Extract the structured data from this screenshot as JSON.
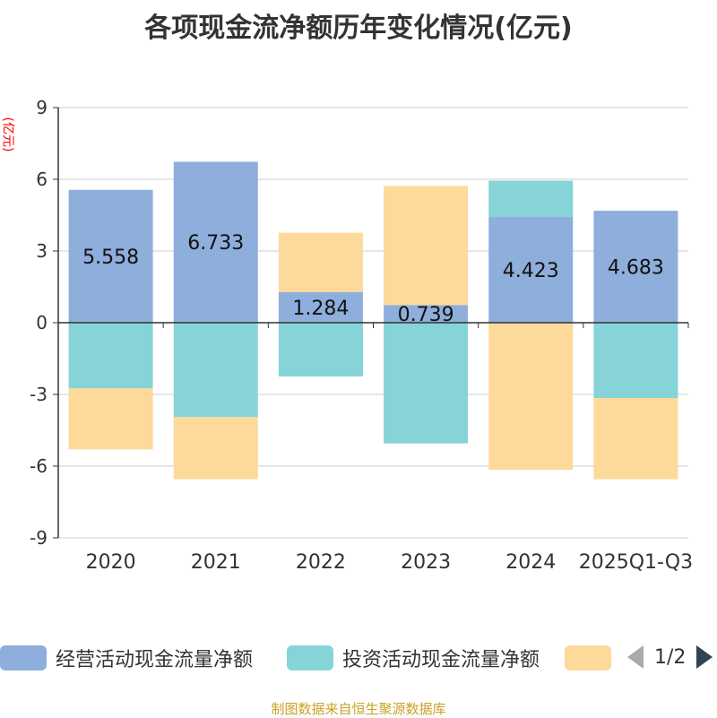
{
  "title": "各项现金流净额历年变化情况(亿元)",
  "unit_label": "(亿元)",
  "source": "制图数据来自恒生聚源数据库",
  "legend": {
    "items": [
      {
        "label": "经营活动现金流量净额",
        "color": "#8eaedb"
      },
      {
        "label": "投资活动现金流量净额",
        "color": "#86d4d8"
      },
      {
        "label": "",
        "color": "#fdd99a"
      }
    ],
    "page_text": "1/2"
  },
  "chart_data": {
    "type": "bar",
    "stacked": true,
    "categories": [
      "2020",
      "2021",
      "2022",
      "2023",
      "2024",
      "2025Q1-Q3"
    ],
    "ylim": [
      -9,
      9
    ],
    "yticks": [
      9,
      6,
      3,
      0,
      -3,
      -6,
      -9
    ],
    "grid": true,
    "legend_position": "bottom",
    "series": [
      {
        "name": "经营活动现金流量净额",
        "color": "#8eaedb",
        "values": [
          5.558,
          6.733,
          1.284,
          0.739,
          4.423,
          4.683
        ],
        "labels": [
          "5.558",
          "6.733",
          "1.284",
          "0.739",
          "4.423",
          "4.683"
        ]
      },
      {
        "name": "投资活动现金流量净额",
        "color": "#86d4d8",
        "values": [
          -2.75,
          -3.95,
          -2.25,
          -5.05,
          1.52,
          -3.15
        ]
      },
      {
        "color": "#fdd99a",
        "values": [
          -2.55,
          -2.6,
          2.48,
          4.98,
          -6.15,
          -3.4
        ]
      }
    ]
  }
}
